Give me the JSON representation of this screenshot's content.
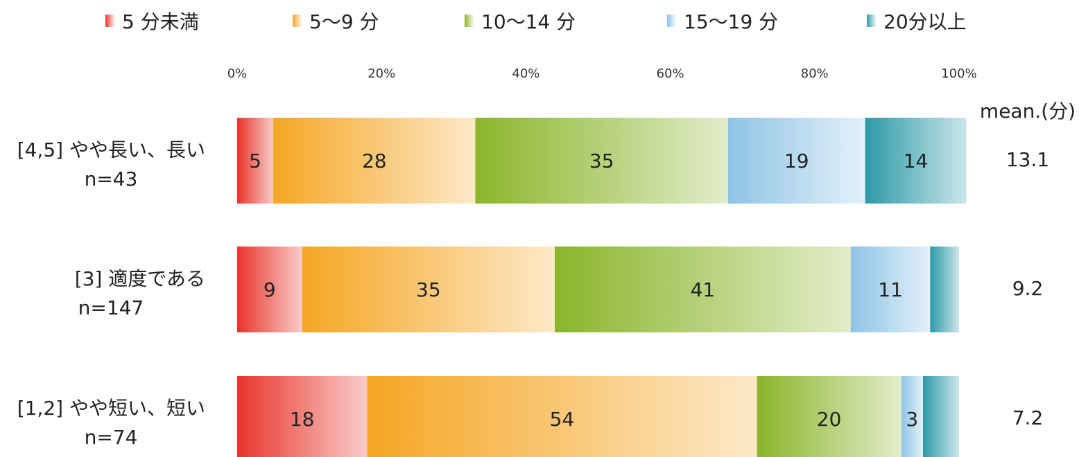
{
  "chart_data": {
    "type": "bar",
    "orientation": "horizontal",
    "stacked": true,
    "categories": [
      {
        "label": "[4,5] やや長い、長い",
        "n": "n=43",
        "mean": "13.1"
      },
      {
        "label": "[3] 適度である",
        "n": "n=147",
        "mean": "9.2"
      },
      {
        "label": "[1,2] やや短い、短い",
        "n": "n=74",
        "mean": "7.2"
      }
    ],
    "series": [
      {
        "name": "5 分未満",
        "color": "#e8352b",
        "values": [
          5,
          9,
          18
        ],
        "labels": [
          "5",
          "9",
          "18"
        ]
      },
      {
        "name": "5～9 分",
        "color": "#f5a623",
        "values": [
          28,
          35,
          54
        ],
        "labels": [
          "28",
          "35",
          "54"
        ]
      },
      {
        "name": "10～14 分",
        "color": "#8ab52a",
        "values": [
          35,
          41,
          20
        ],
        "labels": [
          "35",
          "41",
          "20"
        ]
      },
      {
        "name": "15～19 分",
        "color": "#8fc4e6",
        "values": [
          19,
          11,
          3
        ],
        "labels": [
          "19",
          "11",
          "3"
        ]
      },
      {
        "name": "20分以上",
        "color": "#2c9aa8",
        "values": [
          14,
          4,
          5
        ],
        "labels": [
          "14",
          "",
          ""
        ]
      }
    ],
    "x_ticks": [
      "0%",
      "20%",
      "40%",
      "60%",
      "80%",
      "100%"
    ],
    "xlim": [
      0,
      100
    ],
    "mean_header": "mean.(分)",
    "legend_position": "top",
    "grid": false
  }
}
